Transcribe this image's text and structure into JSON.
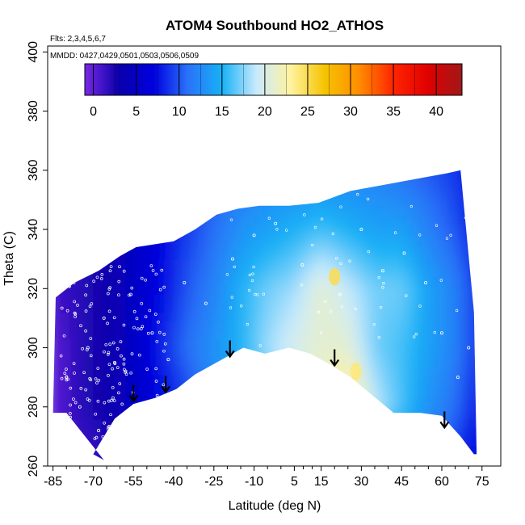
{
  "chart_data": {
    "type": "heatmap",
    "title": "ATOM4 Southbound HO2_ATHOS",
    "flights_note": "Flts: 2,3,4,5,6,7",
    "dates_note": "MMDD: 0427,0429,0501,0503,0506,0509",
    "xlabel": "Latitude (deg N)",
    "ylabel": "Theta (C)",
    "xlim": [
      -87,
      82
    ],
    "ylim": [
      260,
      402
    ],
    "x_ticks": [
      -85,
      -70,
      -55,
      -40,
      -25,
      -10,
      5,
      15,
      30,
      45,
      60,
      75
    ],
    "y_ticks": [
      260,
      280,
      300,
      320,
      340,
      360,
      380,
      400
    ],
    "colorbar": {
      "ticks": [
        0,
        5,
        10,
        15,
        20,
        25,
        30,
        35,
        40
      ],
      "range": [
        -1,
        43
      ],
      "colors": [
        "#7a28e6",
        "#0a00aa",
        "#0000e0",
        "#2a72f8",
        "#17b1f6",
        "#c9eafd",
        "#fff3a2",
        "#f5c400",
        "#ff8d00",
        "#ff2500",
        "#e00000",
        "#a01818"
      ]
    },
    "grid": false,
    "legend": "colorbar inside plot, top",
    "lower_boundary": [
      {
        "lat": -70,
        "theta": 264
      },
      {
        "lat": -62,
        "theta": 276
      },
      {
        "lat": -55,
        "theta": 281
      },
      {
        "lat": -47,
        "theta": 283
      },
      {
        "lat": -39,
        "theta": 286
      },
      {
        "lat": -32,
        "theta": 291
      },
      {
        "lat": -22,
        "theta": 296
      },
      {
        "lat": -14,
        "theta": 300
      },
      {
        "lat": -6,
        "theta": 298
      },
      {
        "lat": 3,
        "theta": 300
      },
      {
        "lat": 11,
        "theta": 298
      },
      {
        "lat": 19,
        "theta": 294
      },
      {
        "lat": 26,
        "theta": 290
      },
      {
        "lat": 34,
        "theta": 284
      },
      {
        "lat": 42,
        "theta": 278
      },
      {
        "lat": 52,
        "theta": 278
      },
      {
        "lat": 60,
        "theta": 277
      },
      {
        "lat": 67,
        "theta": 270
      },
      {
        "lat": 72,
        "theta": 264
      }
    ],
    "upper_boundary": [
      {
        "lat": -85,
        "theta": 278
      },
      {
        "lat": -84,
        "theta": 317
      },
      {
        "lat": -77,
        "theta": 322
      },
      {
        "lat": -68,
        "theta": 326
      },
      {
        "lat": -60,
        "theta": 331
      },
      {
        "lat": -54,
        "theta": 334
      },
      {
        "lat": -47,
        "theta": 335
      },
      {
        "lat": -40,
        "theta": 336
      },
      {
        "lat": -32,
        "theta": 340
      },
      {
        "lat": -24,
        "theta": 345
      },
      {
        "lat": -16,
        "theta": 347
      },
      {
        "lat": -8,
        "theta": 348
      },
      {
        "lat": 3,
        "theta": 348
      },
      {
        "lat": 14,
        "theta": 349
      },
      {
        "lat": 26,
        "theta": 353
      },
      {
        "lat": 38,
        "theta": 355
      },
      {
        "lat": 50,
        "theta": 357
      },
      {
        "lat": 62,
        "theta": 359
      },
      {
        "lat": 67,
        "theta": 360
      },
      {
        "lat": 72,
        "theta": 312
      },
      {
        "lat": 73,
        "theta": 264
      }
    ],
    "value_grid": {
      "lats": [
        -85,
        -75,
        -65,
        -55,
        -45,
        -35,
        -25,
        -15,
        -5,
        5,
        15,
        25,
        35,
        45,
        55,
        65,
        72
      ],
      "thetas": [
        360,
        340,
        320,
        300,
        280,
        265
      ],
      "values": [
        [
          2,
          2,
          3,
          5,
          7,
          8,
          10,
          11,
          12,
          12,
          12,
          12,
          12,
          11,
          10,
          9,
          7
        ],
        [
          1,
          2,
          3,
          5,
          7,
          9,
          11,
          13,
          14,
          15,
          16,
          15,
          14,
          14,
          12,
          10,
          8
        ],
        [
          1,
          2,
          3,
          5,
          7,
          10,
          12,
          15,
          17,
          18,
          21,
          19,
          17,
          17,
          14,
          12,
          9
        ],
        [
          0,
          2,
          3,
          5,
          8,
          11,
          13,
          15,
          18,
          20,
          21,
          21,
          17,
          16,
          14,
          12,
          9
        ],
        [
          0,
          2,
          3,
          5,
          7,
          9,
          12,
          14,
          16,
          18,
          22,
          25,
          19,
          16,
          13,
          11,
          8
        ],
        [
          0,
          1,
          2,
          4,
          6,
          8,
          10,
          12,
          14,
          15,
          15,
          14,
          13,
          12,
          11,
          9,
          7
        ]
      ]
    },
    "hotspots": [
      {
        "lat": 20,
        "theta": 324,
        "value": 25
      },
      {
        "lat": 28,
        "theta": 292,
        "value": 24
      }
    ],
    "arrow_annotations": [
      {
        "lat": -55,
        "theta": 282
      },
      {
        "lat": -43,
        "theta": 285
      },
      {
        "lat": -19,
        "theta": 297
      },
      {
        "lat": 20,
        "theta": 294
      },
      {
        "lat": 61,
        "theta": 273
      }
    ],
    "sample_points": [
      {
        "lat": -80,
        "theta": 290
      },
      {
        "lat": -72,
        "theta": 300
      },
      {
        "lat": -66,
        "theta": 310
      },
      {
        "lat": -62,
        "theta": 295
      },
      {
        "lat": -56,
        "theta": 318
      },
      {
        "lat": -48,
        "theta": 305
      },
      {
        "lat": -42,
        "theta": 296
      },
      {
        "lat": -36,
        "theta": 322
      },
      {
        "lat": -28,
        "theta": 315
      },
      {
        "lat": -18,
        "theta": 330
      },
      {
        "lat": -10,
        "theta": 338
      },
      {
        "lat": -2,
        "theta": 342
      },
      {
        "lat": 8,
        "theta": 328
      },
      {
        "lat": 14,
        "theta": 312
      },
      {
        "lat": 22,
        "theta": 318
      },
      {
        "lat": 30,
        "theta": 340
      },
      {
        "lat": 38,
        "theta": 326
      },
      {
        "lat": 46,
        "theta": 332
      },
      {
        "lat": 54,
        "theta": 322
      },
      {
        "lat": 60,
        "theta": 305
      },
      {
        "lat": 66,
        "theta": 290
      },
      {
        "lat": 70,
        "theta": 300
      },
      {
        "lat": -75,
        "theta": 280
      },
      {
        "lat": -68,
        "theta": 272
      }
    ]
  }
}
